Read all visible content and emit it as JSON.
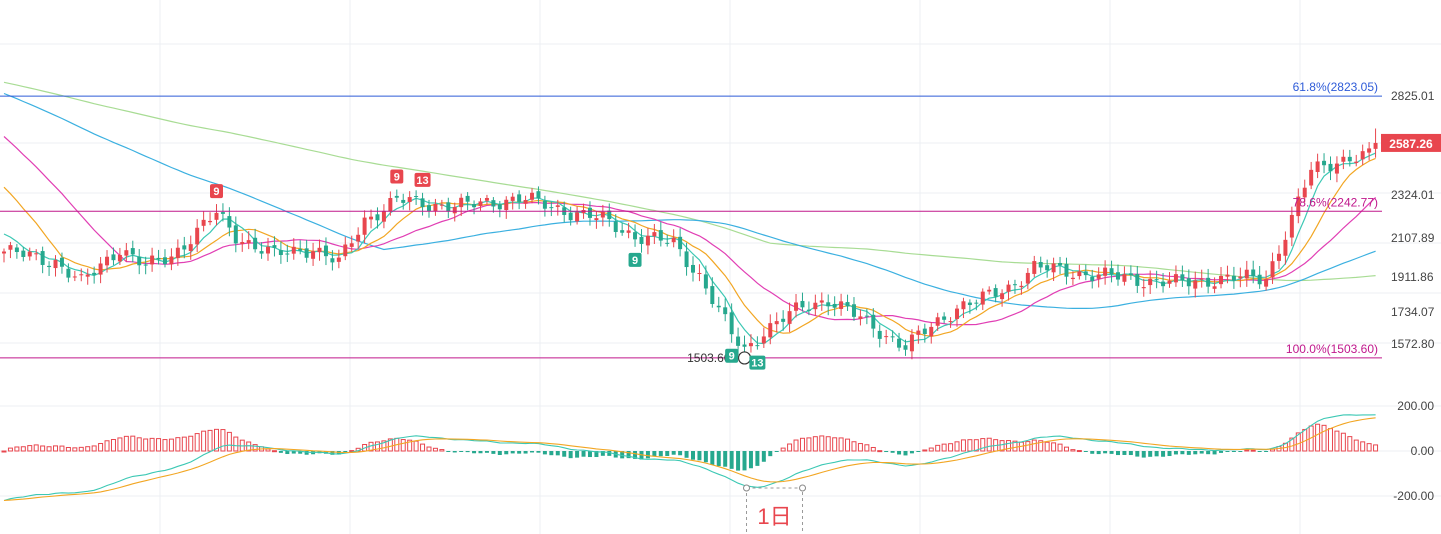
{
  "chart_data": {
    "type": "candlestick",
    "colors": {
      "up": "#e8464e",
      "down": "#26a88e",
      "ma5": "#3cc8b4",
      "ma10": "#f2a623",
      "ma20": "#e13fb4",
      "ma60": "#3bb0e0",
      "ma120": "#a8dc94",
      "fib_top": "#2e5bd8",
      "fib_mid": "#c0188c",
      "price_badge": "#e8464e",
      "macd_dif": "#3cc8b4",
      "macd_dea": "#f2a623",
      "macd_pos": "#e8464e",
      "macd_neg": "#26a88e",
      "seq_up_badge": "#e8464e",
      "seq_down_badge": "#26a88e"
    },
    "price_axis": {
      "min": 1440,
      "max": 2910,
      "ticks": [
        "2825.01",
        "2324.01",
        "2107.89",
        "1911.86",
        "1734.07",
        "1572.80"
      ],
      "tick_values": [
        2825.01,
        2324.01,
        2107.89,
        1911.86,
        1734.07,
        1572.8
      ]
    },
    "macd_axis": {
      "min": -260,
      "max": 240,
      "ticks": [
        "200.00",
        "0.00",
        "-200.00"
      ],
      "tick_values": [
        200,
        0,
        -200
      ]
    },
    "last_price": "2587.26",
    "last_price_value": 2587.26,
    "fib_levels": [
      {
        "label": "61.8%(2823.05)",
        "value": 2823.05,
        "color": "#2e5bd8"
      },
      {
        "label": "78.6%(2242.77)",
        "value": 2242.77,
        "color": "#c0188c"
      },
      {
        "label": "100.0%(1503.60)",
        "value": 1503.6,
        "color": "#c0188c"
      }
    ],
    "low_marker": {
      "label": "1503.60",
      "value": 1503.6,
      "index": 115
    },
    "sequential_markers": [
      {
        "label": "9",
        "index": 33,
        "type": "up"
      },
      {
        "label": "9",
        "index": 61,
        "type": "up"
      },
      {
        "label": "13",
        "index": 65,
        "type": "up"
      },
      {
        "label": "9",
        "index": 98,
        "type": "down"
      },
      {
        "label": "9",
        "index": 113,
        "type": "down"
      },
      {
        "label": "13",
        "index": 117,
        "type": "down"
      }
    ],
    "period_label": "1日",
    "period_index": 115
  }
}
